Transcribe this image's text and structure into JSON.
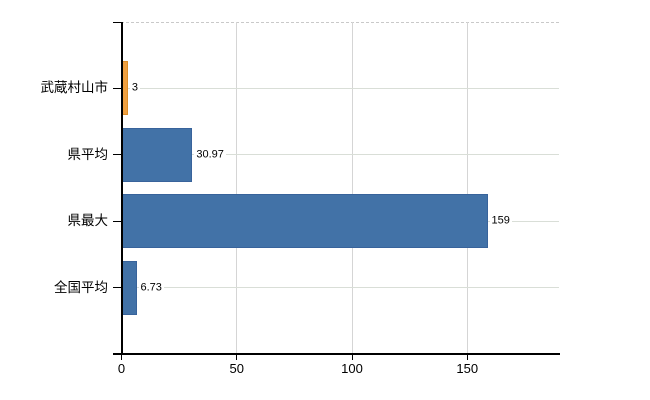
{
  "chart_data": {
    "type": "bar",
    "orientation": "horizontal",
    "title": "",
    "xlabel": "",
    "ylabel": "",
    "legend": "none",
    "categories": [
      "武蔵村山市",
      "県平均",
      "県最大",
      "全国平均"
    ],
    "values": [
      3,
      30.97,
      159,
      6.73
    ],
    "value_labels": [
      "3",
      "30.97",
      "159",
      "6.73"
    ],
    "bar_colors": [
      "#F0A040",
      "#4272A7",
      "#4272A7",
      "#4272A7"
    ],
    "bar_border_colors": [
      "#DE8E28",
      "#38639B",
      "#38639B",
      "#38639B"
    ],
    "x_tick_labels": [
      "0",
      "50",
      "100",
      "150"
    ],
    "x_tick_values": [
      0,
      50,
      100,
      150
    ],
    "xlim": [
      0,
      190
    ],
    "grid": {
      "vertical_gridlines": true,
      "row_guides": true,
      "top_border": "dashed"
    }
  },
  "colors": {
    "axis": "#000000",
    "vertical_gridline": "#d5d5d5",
    "row_guide": "#d9ded7",
    "top_border": "#c9c9c9",
    "text": "#000000",
    "background": "#ffffff"
  }
}
